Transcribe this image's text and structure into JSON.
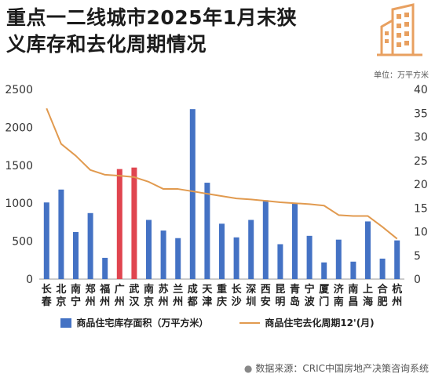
{
  "title": {
    "line1": "重点一二线城市2025年1月末狭",
    "line2": "义库存和去化周期情况"
  },
  "unit_label": "单位：万平方米",
  "source": "数据来源：CRIC中国房地产决策咨询系统",
  "colors": {
    "bar": "#4472c4",
    "bar_highlight": "#e0454f",
    "line": "#e19a4f",
    "logo": "#e8a060"
  },
  "chart_data": {
    "type": "bar",
    "categories": [
      "长春",
      "北京",
      "南宁",
      "郑州",
      "福州",
      "广州",
      "武汉",
      "南京",
      "苏州",
      "兰州",
      "成都",
      "天津",
      "重庆",
      "长沙",
      "深圳",
      "西安",
      "昆明",
      "青岛",
      "宁波",
      "厦门",
      "济南",
      "南昌",
      "上海",
      "合肥",
      "杭州"
    ],
    "series": [
      {
        "name": "商品住宅库存面积（万平方米）",
        "type": "bar",
        "axis": "left",
        "values": [
          1010,
          1180,
          620,
          870,
          280,
          1450,
          1470,
          780,
          640,
          540,
          2240,
          1270,
          730,
          550,
          780,
          1040,
          460,
          1000,
          570,
          220,
          520,
          230,
          760,
          270,
          510
        ],
        "highlight": [
          "广州",
          "武汉"
        ]
      },
      {
        "name": "商品住宅去化周期12'(月)",
        "type": "line",
        "axis": "right",
        "values": [
          36,
          28.5,
          26,
          23,
          22,
          21.8,
          21.5,
          20.5,
          19,
          19,
          18.5,
          18,
          17.5,
          17,
          16.8,
          16.5,
          16.2,
          16,
          15.8,
          15.5,
          13.5,
          13.3,
          13.3,
          11,
          8.5
        ]
      }
    ],
    "y_left": {
      "min": 0,
      "max": 2500,
      "ticks": [
        0,
        500,
        1000,
        1500,
        2000,
        2500
      ]
    },
    "y_right": {
      "min": 0,
      "max": 40,
      "ticks": [
        0,
        5,
        10,
        15,
        20,
        25,
        30,
        35,
        40
      ]
    },
    "grid": false,
    "legend_position": "bottom"
  }
}
